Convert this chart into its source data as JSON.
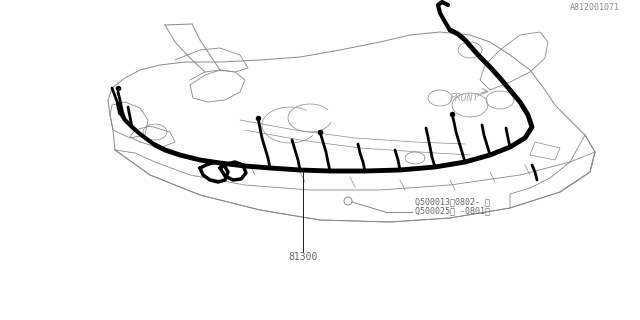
{
  "bg_color": "#ffffff",
  "line_color": "#1a1a1a",
  "thin_line_color": "#888888",
  "thick_wire_color": "#000000",
  "label_81300": "81300",
  "label_q1": "Q500025（ -0801）",
  "label_q2": "Q500013（0802- ）",
  "label_front": "FRONT",
  "label_part": "A812001071",
  "fig_width": 6.4,
  "fig_height": 3.2,
  "dpi": 100
}
